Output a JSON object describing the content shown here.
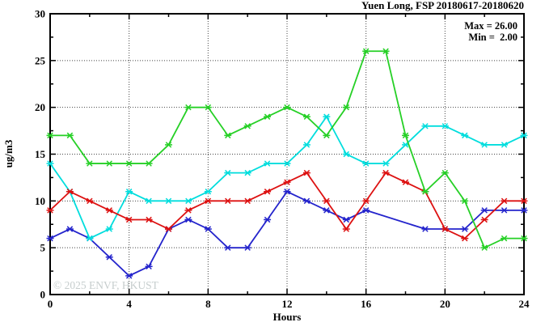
{
  "title": "Yuen Long, FSP 20180617-20180620",
  "stats": {
    "max_label": "Max = 26.00",
    "min_label": "Min =  2.00"
  },
  "watermark": "© 2025 ENVF, HKUST",
  "chart_data": {
    "type": "line",
    "title": "Yuen Long, FSP 20180617-20180620",
    "xlabel": "Hours",
    "ylabel": "ug/m3",
    "xlim": [
      0,
      24
    ],
    "ylim": [
      0,
      30
    ],
    "x_major_ticks": [
      0,
      4,
      8,
      12,
      16,
      20,
      24
    ],
    "x_minor_step": 2,
    "y_major_ticks": [
      0,
      5,
      10,
      15,
      20,
      25,
      30
    ],
    "y_minor_step": 2.5,
    "grid": true,
    "legend_position": "none",
    "max_value": 26.0,
    "min_value": 2.0,
    "x": [
      0,
      1,
      2,
      3,
      4,
      5,
      6,
      7,
      8,
      9,
      10,
      11,
      12,
      13,
      14,
      15,
      16,
      17,
      18,
      19,
      20,
      21,
      22,
      23,
      24
    ],
    "series": [
      {
        "name": "blue",
        "color": "#2424cc",
        "values": [
          6,
          7,
          6,
          4,
          2,
          3,
          7,
          8,
          7,
          5,
          5,
          8,
          11,
          10,
          9,
          8,
          9,
          null,
          null,
          7,
          7,
          7,
          9,
          9,
          9
        ]
      },
      {
        "name": "cyan",
        "color": "#00dddd",
        "values": [
          14,
          11,
          6,
          7,
          11,
          10,
          10,
          10,
          11,
          13,
          13,
          14,
          14,
          16,
          19,
          15,
          14,
          14,
          16,
          18,
          18,
          17,
          16,
          16,
          17
        ]
      },
      {
        "name": "red",
        "color": "#dd1111",
        "values": [
          9,
          11,
          10,
          9,
          8,
          8,
          7,
          9,
          10,
          10,
          10,
          11,
          12,
          13,
          10,
          7,
          10,
          13,
          12,
          11,
          7,
          6,
          8,
          10,
          10
        ]
      },
      {
        "name": "green",
        "color": "#26d026",
        "values": [
          17,
          17,
          14,
          14,
          14,
          14,
          16,
          20,
          20,
          17,
          18,
          19,
          20,
          19,
          17,
          20,
          26,
          26,
          17,
          11,
          13,
          10,
          5,
          6,
          6
        ]
      }
    ]
  }
}
